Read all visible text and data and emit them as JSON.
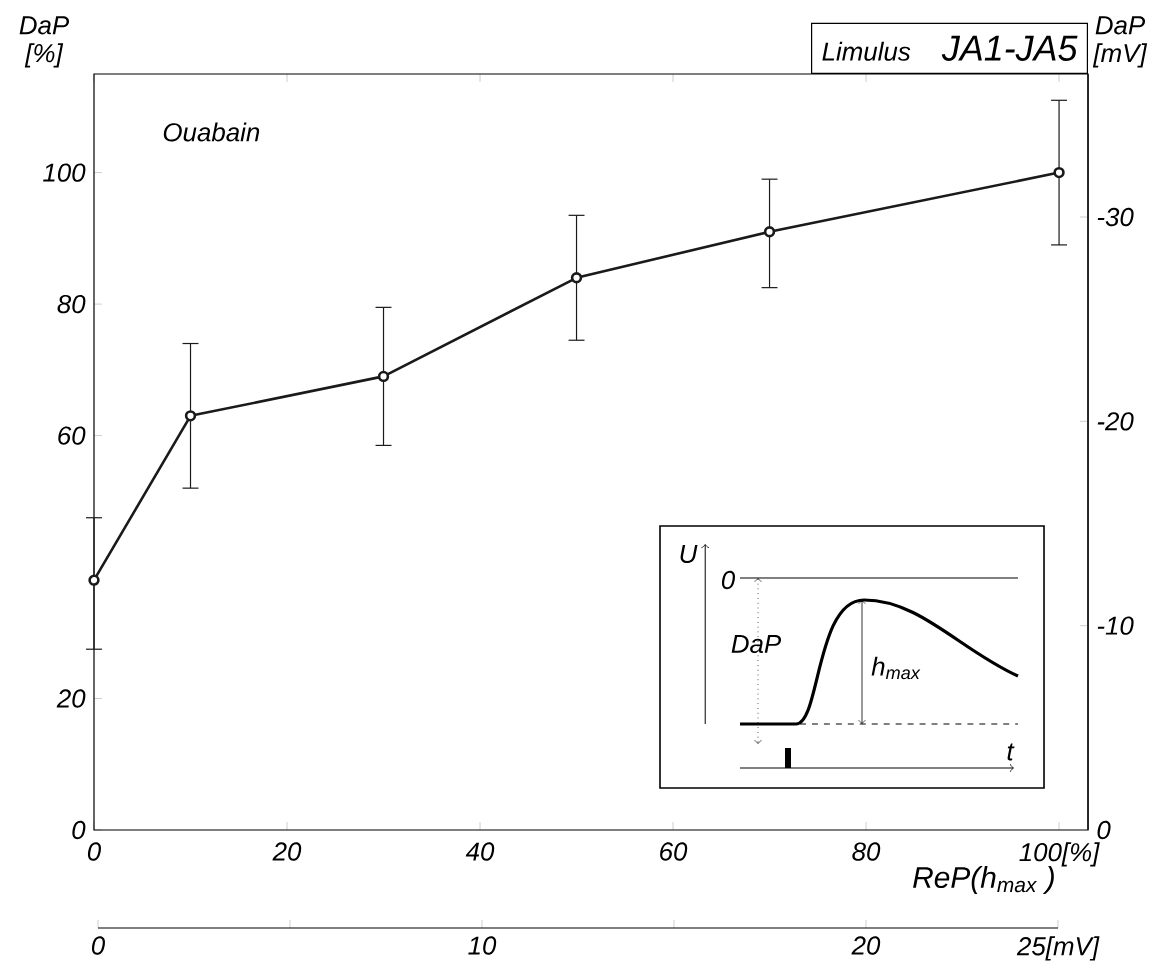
{
  "chart_data": {
    "type": "line",
    "title": "Limulus",
    "subtitle": "JA1-JA5",
    "xlabel": "ReP(h$_{max}$ )",
    "ylabel": "DaP [%]",
    "y2label": "DaP [mV]",
    "annotations": [
      "Ouabain",
      "U",
      "0",
      "DaP",
      "h$_{max}$",
      "t"
    ],
    "x": [
      0,
      10,
      30,
      50,
      70,
      100
    ],
    "series": [
      {
        "color": "#1a1a1a",
        "values": [
          38,
          63,
          69,
          84,
          91,
          100
        ],
        "errors": [
          [
            27.5,
            47.5
          ],
          [
            52,
            74
          ],
          [
            58.5,
            79.5
          ],
          [
            74.5,
            93.5
          ],
          [
            82.5,
            99
          ],
          [
            89,
            111
          ]
        ]
      }
    ],
    "xlim": [
      0,
      103
    ],
    "xticks": [
      0,
      20,
      40,
      60,
      80,
      {
        "value": 100,
        "label": "100[%]"
      }
    ],
    "ylim": [
      0,
      115
    ],
    "yticks": [
      0,
      20,
      60,
      80,
      100
    ],
    "y2lim": [
      0,
      -37
    ],
    "y2ticks": [
      0,
      -10,
      -20,
      -30
    ],
    "x2lim": [
      0,
      25
    ],
    "x2ticks": [
      0,
      {
        "value": 5,
        "label": null
      },
      10,
      {
        "value": 15,
        "label": null
      },
      20,
      {
        "value": 25,
        "label": "25[mV]"
      }
    ],
    "marker": "circle",
    "line_style": "solid",
    "grid": false
  }
}
